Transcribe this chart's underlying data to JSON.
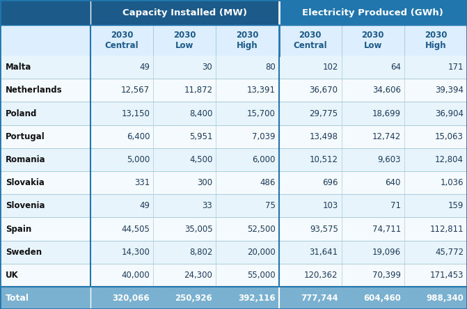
{
  "header1": "Capacity Installed (MW)",
  "header2": "Electricity Produced (GWh)",
  "subheaders": [
    "2030\nCentral",
    "2030\nLow",
    "2030\nHigh",
    "2030\nCentral",
    "2030\nLow",
    "2030\nHigh"
  ],
  "countries": [
    "Malta",
    "Netherlands",
    "Poland",
    "Portugal",
    "Romania",
    "Slovakia",
    "Slovenia",
    "Spain",
    "Sweden",
    "UK"
  ],
  "data": [
    [
      "49",
      "30",
      "80",
      "102",
      "64",
      "171"
    ],
    [
      "12,567",
      "11,872",
      "13,391",
      "36,670",
      "34,606",
      "39,394"
    ],
    [
      "13,150",
      "8,400",
      "15,700",
      "29,775",
      "18,699",
      "36,904"
    ],
    [
      "6,400",
      "5,951",
      "7,039",
      "13,498",
      "12,742",
      "15,063"
    ],
    [
      "5,000",
      "4,500",
      "6,000",
      "10,512",
      "9,603",
      "12,804"
    ],
    [
      "331",
      "300",
      "486",
      "696",
      "640",
      "1,036"
    ],
    [
      "49",
      "33",
      "75",
      "103",
      "71",
      "159"
    ],
    [
      "44,505",
      "35,005",
      "52,500",
      "93,575",
      "74,711",
      "112,811"
    ],
    [
      "14,300",
      "8,802",
      "20,000",
      "31,641",
      "19,096",
      "45,772"
    ],
    [
      "40,000",
      "24,300",
      "55,000",
      "120,362",
      "70,399",
      "171,453"
    ]
  ],
  "totals": [
    "320,066",
    "250,926",
    "392,116",
    "777,744",
    "604,460",
    "988,340"
  ],
  "col_header_dark": "#1c5a8a",
  "col_header_light": "#2176ae",
  "col_subheader_bg": "#ddeeff",
  "col_row_odd": "#e8f4fc",
  "col_row_even": "#f5faff",
  "col_total_bg": "#7ab0d0",
  "col_border": "#2176ae",
  "col_border_light": "#aaccdd",
  "col_header_text": "#ffffff",
  "col_subheader_text": "#1c5a8a",
  "col_country_text": "#111111",
  "col_data_text": "#1c3a5a",
  "col_total_text": "#ffffff",
  "fig_w": 6.71,
  "fig_h": 4.44,
  "dpi": 100
}
